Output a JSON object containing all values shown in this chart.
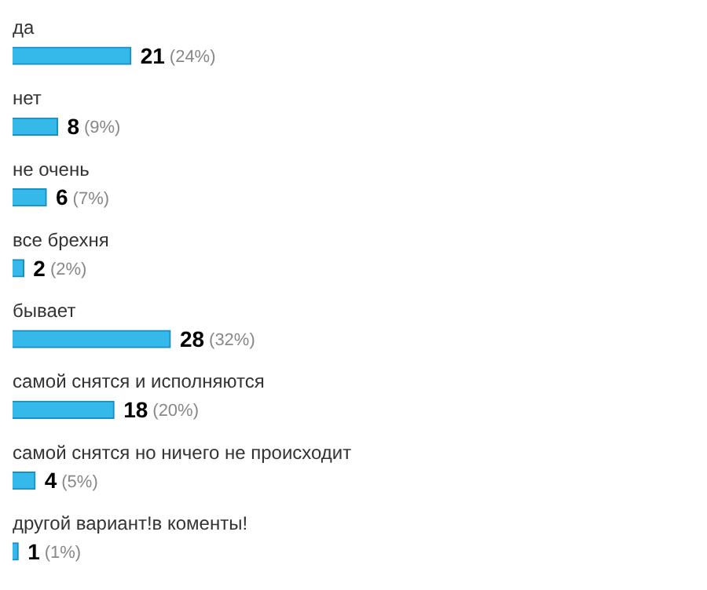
{
  "chart_data": {
    "type": "bar",
    "orientation": "horizontal",
    "categories": [
      "да",
      "нет",
      "не очень",
      "все брехня",
      "бывает",
      "самой снятся и исполняются",
      "самой снятся но ничего не происходит",
      "другой вариант!в коменты!"
    ],
    "values": [
      21,
      8,
      6,
      2,
      28,
      18,
      4,
      1
    ],
    "value_labels": [
      "21 (24%)",
      "8 (9%)",
      "6 (7%)",
      "2 (2%)",
      "28 (32%)",
      "18 (20%)",
      "4 (5%)",
      "1 (1%)"
    ],
    "color": "#35b8ea",
    "legend": false
  }
}
